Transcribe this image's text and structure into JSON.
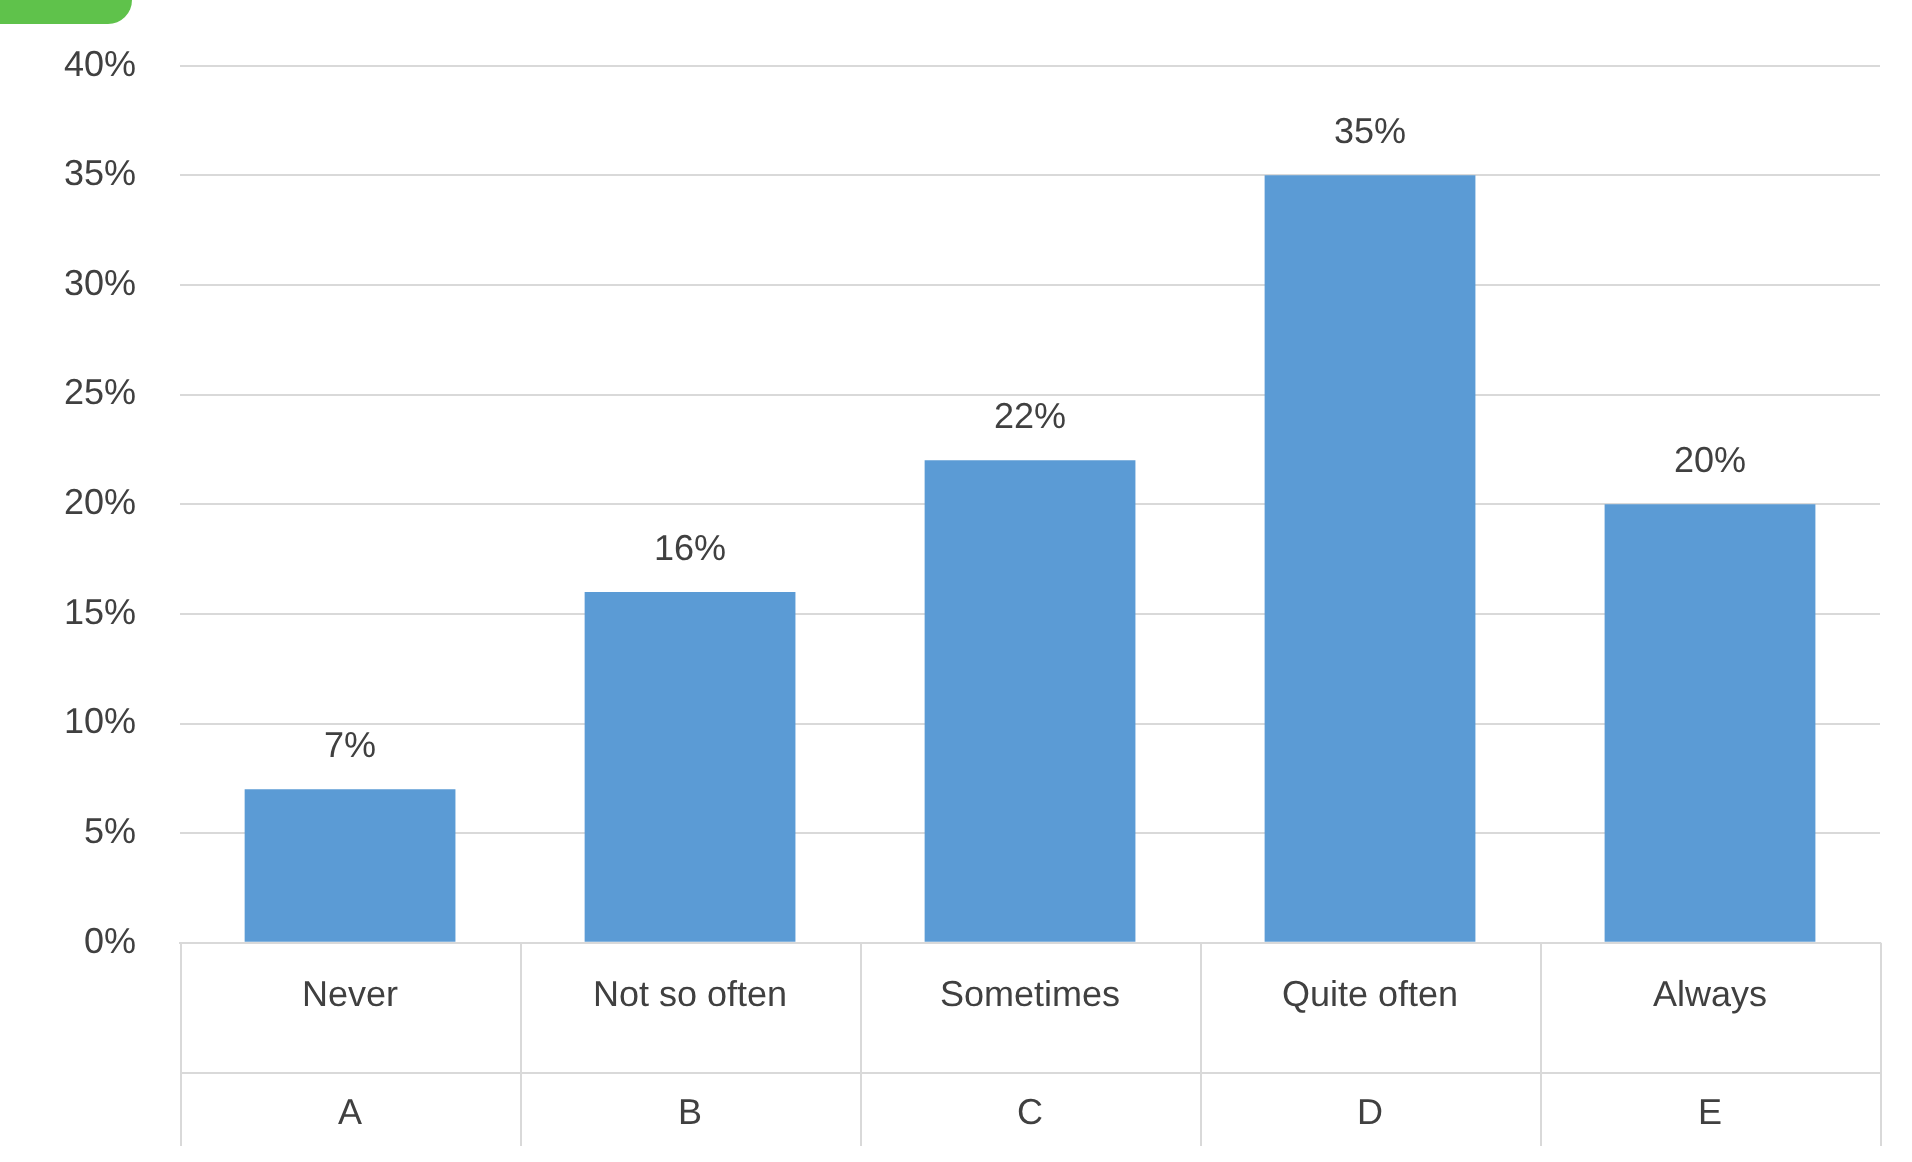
{
  "chart_data": {
    "type": "bar",
    "categories": [
      "Never",
      "Not so often",
      "Sometimes",
      "Quite often",
      "Always"
    ],
    "values": [
      7,
      16,
      22,
      35,
      20
    ],
    "color": "#5b9bd5",
    "ylim": [
      0,
      40
    ],
    "yticks": [
      {
        "value": 0,
        "label": "0%"
      },
      {
        "value": 5,
        "label": "5%"
      },
      {
        "value": 10,
        "label": "10%"
      },
      {
        "value": 15,
        "label": "15%"
      },
      {
        "value": 20,
        "label": "20%"
      },
      {
        "value": 25,
        "label": "25%"
      },
      {
        "value": 30,
        "label": "30%"
      },
      {
        "value": 35,
        "label": "35%"
      },
      {
        "value": 40,
        "label": "40%"
      }
    ],
    "value_labels": [
      "7%",
      "16%",
      "22%",
      "35%",
      "20%"
    ],
    "annotations": [
      "A",
      "B",
      "C",
      "D",
      "E"
    ],
    "grid": "y",
    "legend": false
  }
}
